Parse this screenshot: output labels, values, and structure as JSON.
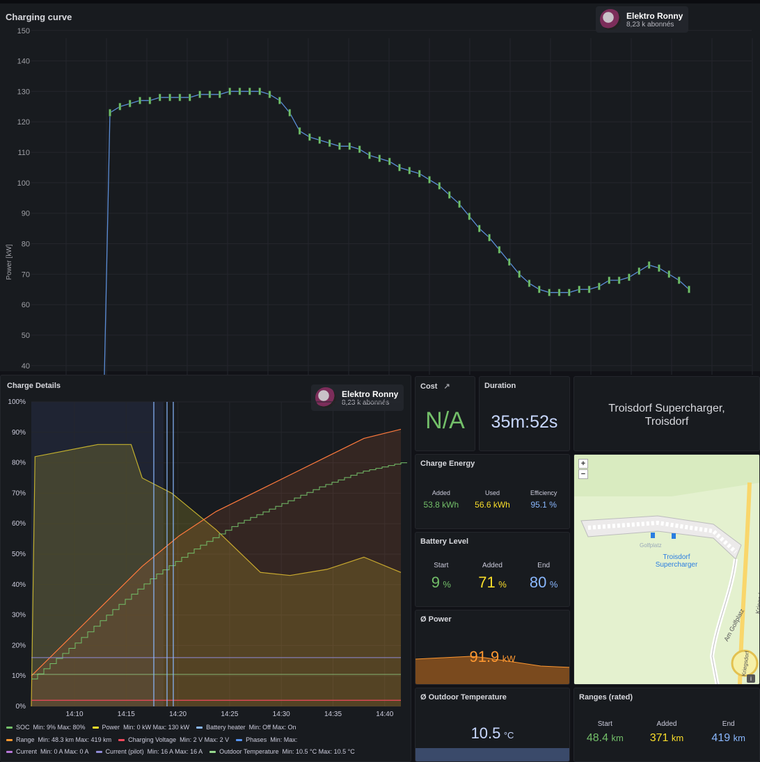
{
  "top_panel": {
    "title": "Charging curve",
    "badge": {
      "name": "Elektro Ronny",
      "subs": "8,23 k abonnés"
    }
  },
  "details_panel": {
    "title": "Charge Details",
    "badge": {
      "name": "Elektro Ronny",
      "subs": "8,23 k abonnés"
    },
    "legend": [
      {
        "label": "SOC",
        "stats": "Min: 9%  Max: 80%",
        "color": "#73bf69"
      },
      {
        "label": "Power",
        "stats": "Min: 0 kW  Max: 130 kW",
        "color": "#fade2a"
      },
      {
        "label": "Battery heater",
        "stats": "Min: Off  Max: On",
        "color": "#8ab8ff"
      },
      {
        "label": "Range",
        "stats": "Min: 48.3 km  Max: 419 km",
        "color": "#ff9830"
      },
      {
        "label": "Charging Voltage",
        "stats": "Min: 2 V  Max: 2 V",
        "color": "#f2495c"
      },
      {
        "label": "Phases",
        "stats": "Min:  Max:",
        "color": "#5794f2"
      },
      {
        "label": "Current",
        "stats": "Min: 0 A  Max: 0 A",
        "color": "#b877d9"
      },
      {
        "label": "Current (pilot)",
        "stats": "Min: 16 A  Max: 16 A",
        "color": "#8f8bd6"
      },
      {
        "label": "Outdoor Temperature",
        "stats": "Min: 10.5 °C  Max: 10.5 °C",
        "color": "#96d98d"
      }
    ]
  },
  "cost": {
    "title": "Cost",
    "value": "N/A"
  },
  "duration": {
    "title": "Duration",
    "value": "35m:52s"
  },
  "location": {
    "name": "Troisdorf Supercharger, Troisdorf"
  },
  "charge_energy": {
    "title": "Charge Energy",
    "added_label": "Added",
    "added": "53.8 kWh",
    "used_label": "Used",
    "used": "56.6 kWh",
    "eff_label": "Efficiency",
    "eff": "95.1 %"
  },
  "battery": {
    "title": "Battery Level",
    "start_label": "Start",
    "start": "9",
    "start_unit": "%",
    "added_label": "Added",
    "added": "71",
    "added_unit": "%",
    "end_label": "End",
    "end": "80",
    "end_unit": "%"
  },
  "avg_power": {
    "title": "Ø Power",
    "value": "91.9",
    "unit": "kW"
  },
  "outdoor": {
    "title": "Ø Outdoor Temperature",
    "value": "10.5",
    "unit": "°C"
  },
  "ranges": {
    "title": "Ranges (rated)",
    "start_label": "Start",
    "start": "48.4",
    "start_unit": "km",
    "added_label": "Added",
    "added": "371",
    "added_unit": "km",
    "end_label": "End",
    "end": "419",
    "end_unit": "km"
  },
  "map": {
    "zoom_in": "+",
    "zoom_out": "−",
    "poi_small": "Golfplatz",
    "poi": "Troisdorf Supercharger",
    "street1": "Am Golfplatz",
    "street2": "Kriegsdorfer Straße",
    "street3": "Kriegsdorf",
    "info": "i"
  },
  "chart_data": [
    {
      "type": "line",
      "title": "Charging curve",
      "ylabel": "Power [kW]",
      "ylim": [
        37,
        152
      ],
      "yticks": [
        150,
        140,
        130,
        120,
        110,
        100,
        90,
        80,
        70,
        60,
        50,
        40
      ],
      "series": [
        {
          "name": "Power",
          "values": [
            0,
            123,
            125,
            126,
            127,
            127,
            128,
            128,
            128,
            128,
            129,
            129,
            129,
            130,
            130,
            130,
            130,
            129,
            127,
            123,
            117,
            115,
            114,
            113,
            112,
            112,
            111,
            109,
            108,
            107,
            105,
            104,
            103,
            101,
            99,
            96,
            93,
            89,
            85,
            82,
            78,
            74,
            70,
            67,
            65,
            64,
            64,
            64,
            65,
            65,
            66,
            68,
            68,
            69,
            71,
            73,
            72,
            70,
            68,
            65
          ]
        }
      ]
    },
    {
      "type": "line",
      "title": "Charge Details",
      "yticks": [
        "100%",
        "90%",
        "80%",
        "70%",
        "60%",
        "50%",
        "40%",
        "30%",
        "20%",
        "10%",
        "0%"
      ],
      "xticks": [
        "14:10",
        "14:15",
        "14:20",
        "14:25",
        "14:30",
        "14:35",
        "14:40"
      ],
      "ylim": [
        0,
        100
      ],
      "series": [
        {
          "name": "SOC",
          "values": [
            9,
            20,
            32,
            43,
            52,
            60,
            66,
            72,
            77,
            80
          ]
        },
        {
          "name": "Power",
          "values": [
            0,
            82,
            86,
            86,
            86,
            75,
            70,
            58,
            44,
            43,
            45,
            49,
            44
          ]
        },
        {
          "name": "Range",
          "values": [
            10,
            22,
            34,
            46,
            56,
            64,
            70,
            76,
            82,
            88,
            91
          ]
        },
        {
          "name": "Current (pilot)",
          "values": [
            16,
            16
          ]
        },
        {
          "name": "Outdoor Temperature",
          "values": [
            10.5,
            10.5
          ]
        },
        {
          "name": "Charging Voltage",
          "values": [
            2,
            2
          ]
        }
      ]
    }
  ]
}
